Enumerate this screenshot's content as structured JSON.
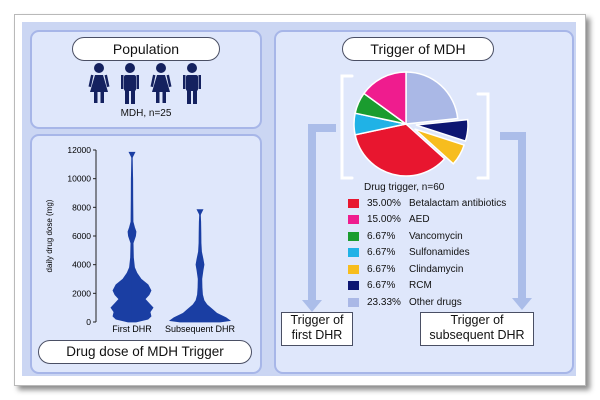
{
  "population": {
    "title": "Population",
    "caption": "MDH, n=25"
  },
  "dose": {
    "title": "Drug dose of MDH Trigger"
  },
  "trigger": {
    "title": "Trigger of MDH",
    "pie_caption": "Drug trigger, n=60",
    "first_box": [
      "Trigger of",
      "first DHR"
    ],
    "subsequent_box": [
      "Trigger of",
      "subsequent DHR"
    ]
  },
  "chart_data": [
    {
      "type": "violin",
      "ylabel": "daily drug dose (mg)",
      "ylim": [
        0,
        12000
      ],
      "yticks": [
        "0",
        "2000",
        "4000",
        "6000",
        "8000",
        "10000",
        "12000"
      ],
      "categories": [
        "First DHR",
        "Subsequent DHR"
      ],
      "max_values": [
        11800,
        7800
      ],
      "colors": {
        "fill": "#1a3ea3"
      }
    },
    {
      "type": "pie",
      "categories": [
        "Betalactam antibiotics",
        "AED",
        "Vancomycin",
        "Sulfonamides",
        "Clindamycin",
        "RCM",
        "Other drugs"
      ],
      "labels": [
        "35.00%",
        "15.00%",
        "6.67%",
        "6.67%",
        "6.67%",
        "6.67%",
        "23.33%"
      ],
      "values": [
        35.0,
        15.0,
        6.67,
        6.67,
        6.67,
        6.67,
        23.33
      ],
      "exploded": [
        "Clindamycin",
        "RCM"
      ],
      "colors": [
        "#e8162f",
        "#ef1c8e",
        "#1a9c2f",
        "#20b2e6",
        "#f7bd1e",
        "#0d1672",
        "#aab8e6"
      ]
    }
  ]
}
